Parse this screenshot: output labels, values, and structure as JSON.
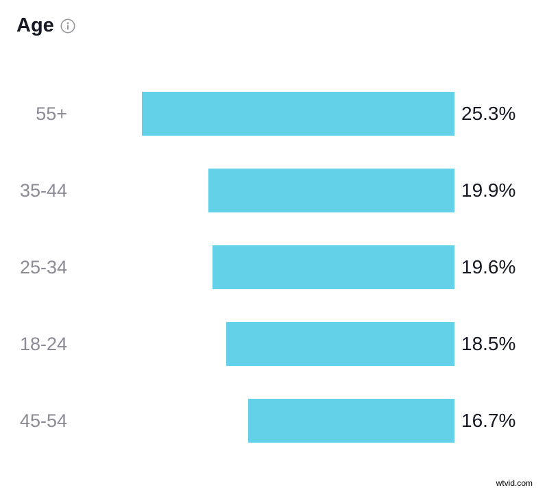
{
  "header": {
    "title": "Age"
  },
  "chart_data": {
    "type": "bar",
    "orientation": "horizontal",
    "title": "Age",
    "categories": [
      "55+",
      "35-44",
      "25-34",
      "18-24",
      "45-54"
    ],
    "values": [
      25.3,
      19.9,
      19.6,
      18.5,
      16.7
    ],
    "value_labels": [
      "25.3%",
      "19.9%",
      "19.6%",
      "18.5%",
      "16.7%"
    ],
    "value_suffix": "%",
    "max_value": 25.3,
    "bars_right_aligned": true,
    "grid": false,
    "legend": false,
    "bar_color": "#63d2e8",
    "category_label_color": "#8a8b95",
    "value_label_color": "#161823",
    "title_color": "#161823",
    "info_icon_color": "#97989d"
  },
  "watermark": {
    "text": "wtvid.com"
  }
}
